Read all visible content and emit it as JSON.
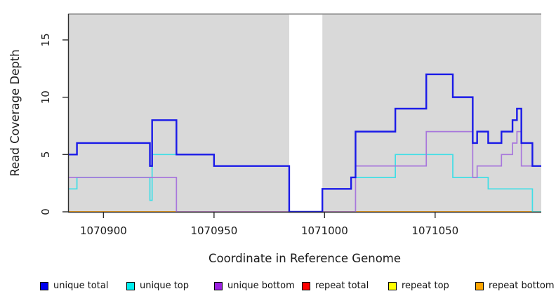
{
  "chart_data": {
    "type": "line",
    "step": true,
    "title": "",
    "xlabel": "Coordinate in Reference Genome",
    "ylabel": "Read Coverage Depth",
    "xlim": [
      1070884,
      1071098
    ],
    "ylim": [
      0,
      17.26
    ],
    "x_ticks": [
      1070900,
      1070950,
      1071000,
      1071050
    ],
    "y_ticks": [
      0,
      5,
      10,
      15
    ],
    "grid": false,
    "legend_position": "bottom",
    "plot_background_color": "#d9d9d9",
    "plot_top_border_color": "#8c8c8c",
    "axis_color": "#2e2e2e",
    "coverage_regions": [
      [
        1070884,
        1070984
      ],
      [
        1070999,
        1071098
      ]
    ],
    "gap_regions": [
      [
        1070984,
        1070999
      ]
    ],
    "draw_order": [
      "repeat total",
      "repeat top",
      "repeat bottom",
      "unique top",
      "unique bottom",
      "unique total"
    ],
    "series": [
      {
        "name": "unique total",
        "color": "#1a1ae8",
        "legend_color": "#0000ee",
        "line_width": 2.4,
        "steps": [
          [
            1070884,
            5
          ],
          [
            1070888,
            6
          ],
          [
            1070921,
            4
          ],
          [
            1070922,
            8
          ],
          [
            1070933,
            5
          ],
          [
            1070950,
            4
          ],
          [
            1070984,
            0
          ],
          [
            1070999,
            2
          ],
          [
            1071012,
            3
          ],
          [
            1071014,
            7
          ],
          [
            1071032,
            9
          ],
          [
            1071046,
            12
          ],
          [
            1071058,
            10
          ],
          [
            1071067,
            6
          ],
          [
            1071069,
            7
          ],
          [
            1071074,
            6
          ],
          [
            1071080,
            7
          ],
          [
            1071085,
            8
          ],
          [
            1071087,
            9
          ],
          [
            1071089,
            6
          ],
          [
            1071094,
            4
          ]
        ]
      },
      {
        "name": "unique top",
        "color": "#3fdee6",
        "legend_color": "#00eeee",
        "line_width": 1.7,
        "steps": [
          [
            1070884,
            2
          ],
          [
            1070888,
            3
          ],
          [
            1070921,
            1
          ],
          [
            1070922,
            5
          ],
          [
            1070950,
            4
          ],
          [
            1070984,
            0
          ],
          [
            1070999,
            2
          ],
          [
            1071012,
            3
          ],
          [
            1071032,
            5
          ],
          [
            1071058,
            3
          ],
          [
            1071074,
            2
          ],
          [
            1071094,
            0
          ]
        ]
      },
      {
        "name": "unique bottom",
        "color": "#a877dc",
        "legend_color": "#9b20e0",
        "line_width": 1.7,
        "steps": [
          [
            1070884,
            3
          ],
          [
            1070933,
            0
          ],
          [
            1071014,
            4
          ],
          [
            1071046,
            7
          ],
          [
            1071067,
            3
          ],
          [
            1071069,
            4
          ],
          [
            1071080,
            5
          ],
          [
            1071085,
            6
          ],
          [
            1071087,
            7
          ],
          [
            1071089,
            4
          ]
        ]
      },
      {
        "name": "repeat total",
        "color": "#e00000",
        "legend_color": "#ff0000",
        "line_width": 1.6,
        "steps": [
          [
            1070884,
            0
          ]
        ]
      },
      {
        "name": "repeat top",
        "color": "#f0f000",
        "legend_color": "#ffff00",
        "line_width": 1.6,
        "steps": [
          [
            1070884,
            0
          ]
        ]
      },
      {
        "name": "repeat bottom",
        "color": "#ffa519",
        "legend_color": "#ffa500",
        "line_width": 1.9,
        "steps": [
          [
            1070884,
            0
          ]
        ]
      }
    ]
  }
}
